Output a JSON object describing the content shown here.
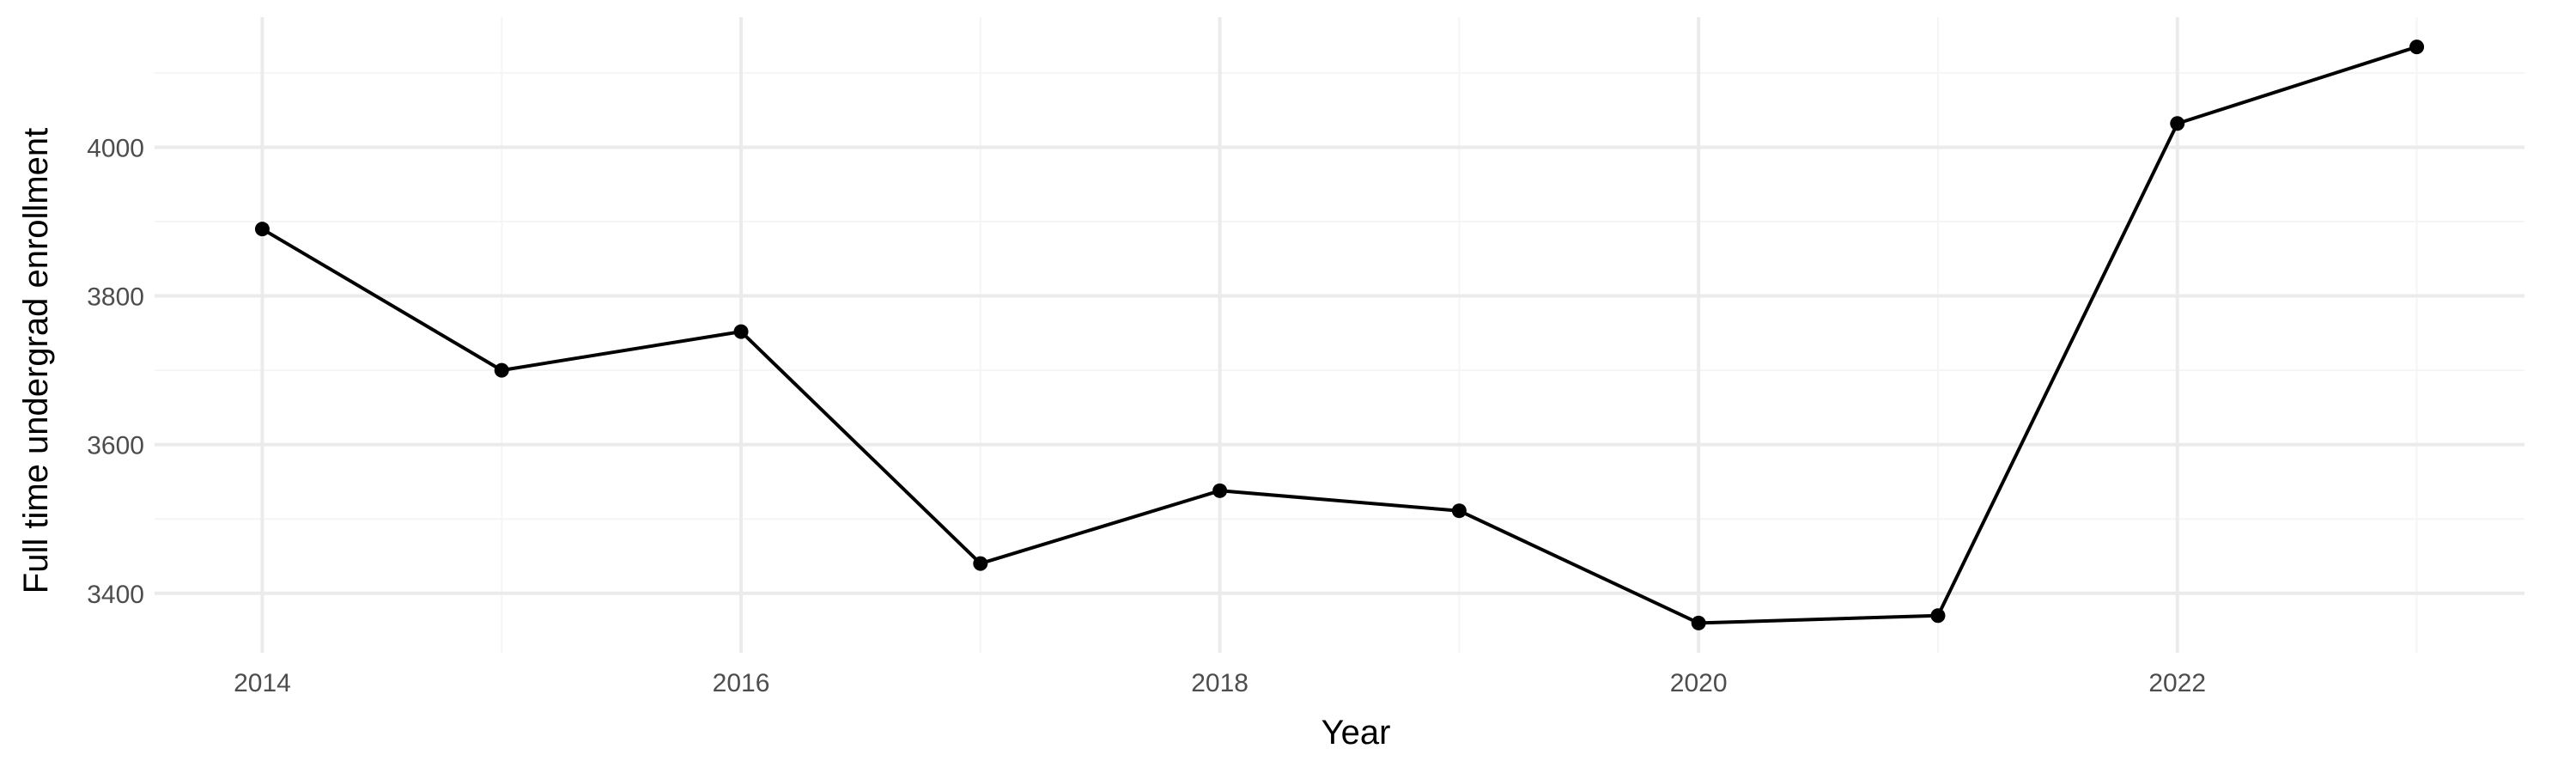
{
  "chart_data": {
    "type": "line",
    "title": "",
    "xlabel": "Year",
    "ylabel": "Full time undergrad enrollment",
    "x": [
      2014,
      2015,
      2016,
      2017,
      2018,
      2019,
      2020,
      2021,
      2022,
      2023
    ],
    "series": [
      {
        "values": [
          3890,
          3700,
          3752,
          3440,
          3538,
          3511,
          3360,
          3370,
          4032,
          4135
        ]
      }
    ],
    "xlim": [
      2013.55,
      2023.45
    ],
    "ylim": [
      3320,
      4175
    ],
    "x_ticks": [
      2014,
      2016,
      2018,
      2020,
      2022
    ],
    "x_tick_labels": [
      "2014",
      "2016",
      "2018",
      "2020",
      "2022"
    ],
    "x_minor_ticks": [
      2015,
      2017,
      2019,
      2021,
      2023
    ],
    "y_ticks": [
      3400,
      3600,
      3800,
      4000
    ],
    "y_tick_labels": [
      "3400",
      "3600",
      "3800",
      "4000"
    ],
    "y_minor_ticks": [
      3500,
      3700,
      3900,
      4100
    ],
    "grid": true,
    "legend": "none",
    "colors": {
      "line": "#000000",
      "point": "#000000",
      "grid_major": "#ebebeb",
      "grid_minor": "#f5f5f5",
      "tick_text": "#4d4d4d",
      "axis_title": "#000000",
      "background": "#ffffff"
    }
  }
}
